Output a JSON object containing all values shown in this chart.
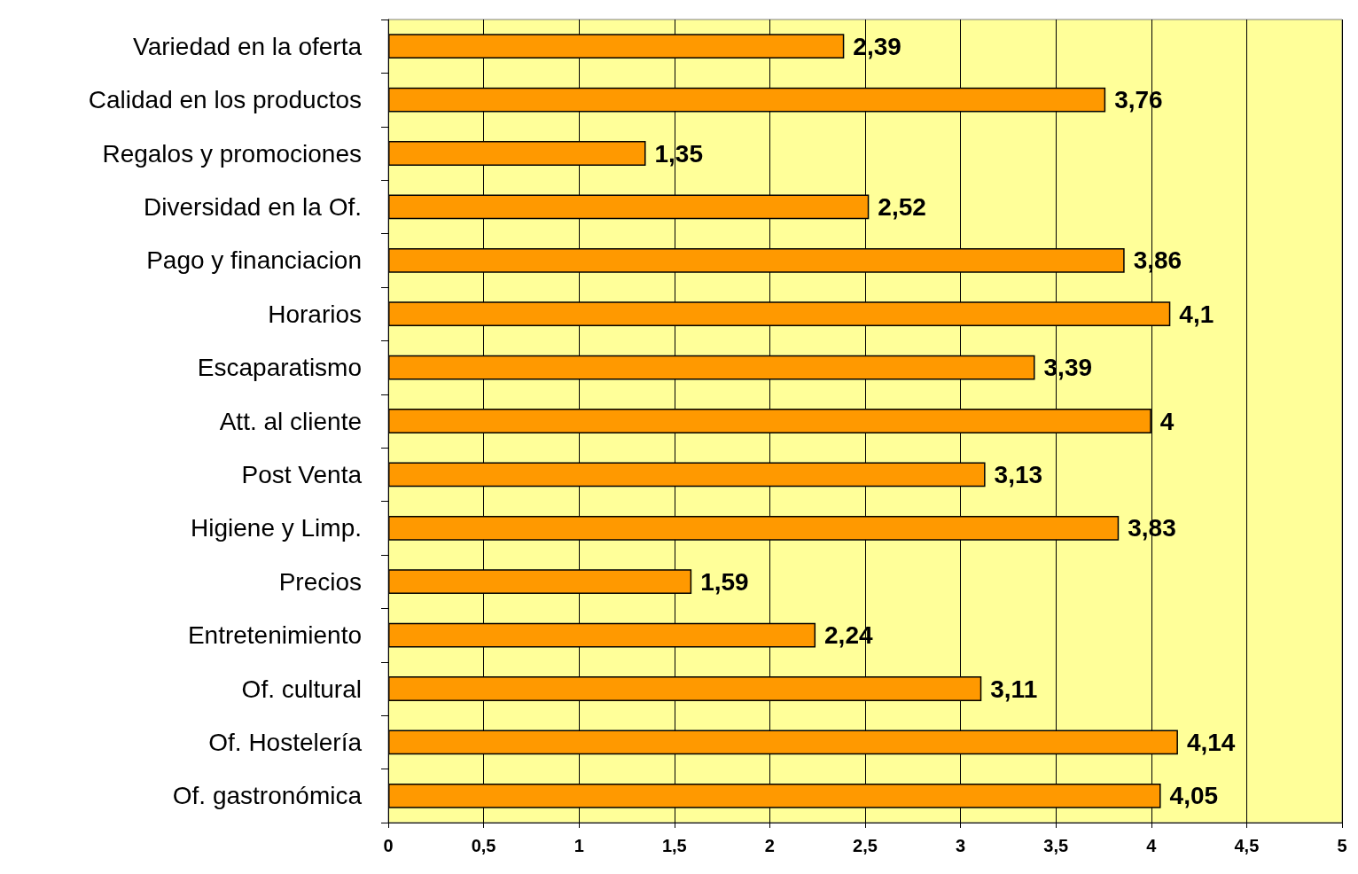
{
  "chart_data": {
    "type": "bar",
    "orientation": "horizontal",
    "categories": [
      "Variedad en la oferta",
      "Calidad en los productos",
      "Regalos y promociones",
      "Diversidad en la Of.",
      "Pago y financiacion",
      "Horarios",
      "Escaparatismo",
      "Att. al cliente",
      "Post Venta",
      "Higiene y Limp.",
      "Precios",
      "Entretenimiento",
      "Of. cultural",
      "Of. Hostelería",
      "Of. gastronómica"
    ],
    "values": [
      2.39,
      3.76,
      1.35,
      2.52,
      3.86,
      4.1,
      3.39,
      4,
      3.13,
      3.83,
      1.59,
      2.24,
      3.11,
      4.14,
      4.05
    ],
    "value_labels": [
      "2,39",
      "3,76",
      "1,35",
      "2,52",
      "3,86",
      "4,1",
      "3,39",
      "4",
      "3,13",
      "3,83",
      "1,59",
      "2,24",
      "3,11",
      "4,14",
      "4,05"
    ],
    "color": "#ff9900",
    "xlim": [
      0,
      5
    ],
    "xticks": [
      0,
      {
        "value": 0.5,
        "label": "0,5"
      },
      1,
      {
        "value": 1.5,
        "label": "1,5"
      },
      2,
      {
        "value": 2.5,
        "label": "2,5"
      },
      3,
      {
        "value": 3.5,
        "label": "3,5"
      },
      4,
      {
        "value": 4.5,
        "label": "4,5"
      },
      5
    ],
    "grid": "x"
  }
}
